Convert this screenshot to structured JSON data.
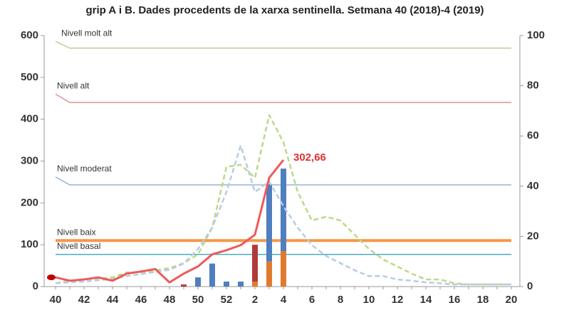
{
  "chart_data": {
    "type": "line",
    "title": "grip A i B. Dades procedents de la xarxa sentinella.  Setmana 40 (2018)-4 (2019)",
    "categories": [
      "40",
      null,
      "42",
      null,
      "44",
      null,
      "46",
      null,
      "48",
      null,
      "50",
      null,
      "52",
      null,
      "2",
      null,
      "4",
      null,
      "6",
      null,
      "8",
      null,
      "10",
      null,
      "12",
      null,
      "14",
      null,
      "16",
      null,
      "18",
      null,
      "20"
    ],
    "ylim": [
      0,
      600
    ],
    "yticks": [
      0,
      100,
      200,
      300,
      400,
      500,
      600
    ],
    "y2lim": [
      0,
      100
    ],
    "y2ticks": [
      0,
      20,
      40,
      60,
      80,
      100
    ],
    "thresholds": [
      {
        "name": "Nivell molt alt",
        "color": "#b9cf8f",
        "width": 1.5,
        "values": [
          586,
          570
        ]
      },
      {
        "name": "Nivell alt",
        "color": "#d99594",
        "width": 1.5,
        "values": [
          460,
          440
        ]
      },
      {
        "name": "Nivell moderat",
        "color": "#95b3d7",
        "width": 1.5,
        "values": [
          262,
          243
        ]
      },
      {
        "name": "Nivell baix",
        "color": "#f79646",
        "width": 4,
        "values": [
          110,
          110
        ]
      },
      {
        "name": "Nivell basal",
        "color": "#4bacc6",
        "width": 1.5,
        "values": [
          77,
          77
        ]
      }
    ],
    "bars": [
      {
        "color": "#e07b2e",
        "values": [
          null,
          null,
          null,
          null,
          null,
          null,
          null,
          null,
          null,
          null,
          null,
          null,
          null,
          null,
          12,
          60,
          85,
          null,
          null,
          null,
          null,
          null,
          null,
          null,
          null,
          null,
          null,
          null,
          null,
          null,
          null,
          null,
          null
        ]
      },
      {
        "color": "#b03a3a",
        "values": [
          null,
          null,
          null,
          null,
          null,
          null,
          null,
          null,
          null,
          5,
          null,
          null,
          null,
          null,
          88,
          null,
          null,
          null,
          null,
          null,
          null,
          null,
          null,
          null,
          null,
          null,
          null,
          null,
          null,
          null,
          null,
          null,
          null
        ]
      },
      {
        "color": "#4f7fbf",
        "values": [
          null,
          null,
          null,
          null,
          null,
          null,
          null,
          null,
          null,
          null,
          22,
          55,
          12,
          12,
          null,
          185,
          197,
          null,
          null,
          null,
          null,
          null,
          null,
          null,
          null,
          null,
          null,
          null,
          null,
          null,
          null,
          null,
          null
        ]
      }
    ],
    "series": [
      {
        "color": "#bcd98a",
        "dash": true,
        "values": [
          8,
          14,
          17,
          19,
          22,
          34,
          34,
          39,
          44,
          56,
          77,
          141,
          286,
          291,
          260,
          410,
          345,
          226,
          158,
          167,
          158,
          124,
          90,
          65,
          48,
          31,
          17,
          17,
          8,
          5,
          5,
          5,
          5
        ]
      },
      {
        "color": "#b8cce4",
        "dash": true,
        "values": [
          8,
          10,
          12,
          15,
          18,
          25,
          30,
          35,
          40,
          55,
          90,
          141,
          226,
          337,
          226,
          251,
          192,
          141,
          99,
          73,
          56,
          39,
          25,
          25,
          17,
          14,
          10,
          8,
          5,
          5,
          5,
          5,
          5
        ]
      },
      {
        "color": "#ee5a5a",
        "dash": false,
        "values": [
          22,
          14,
          17,
          22,
          14,
          31,
          36,
          42,
          10,
          31,
          48,
          77,
          87,
          99,
          124,
          260,
          302.66,
          null,
          null,
          null,
          null,
          null,
          null,
          null,
          null,
          null,
          null,
          null,
          null,
          null,
          null,
          null,
          null
        ],
        "value_labels": [
          null,
          null,
          null,
          null,
          null,
          null,
          null,
          null,
          null,
          null,
          null,
          null,
          null,
          null,
          null,
          null,
          "302,66",
          null,
          null,
          null,
          null,
          null,
          null,
          null,
          null,
          null,
          null,
          null,
          null,
          null,
          null,
          null,
          null
        ]
      }
    ]
  }
}
